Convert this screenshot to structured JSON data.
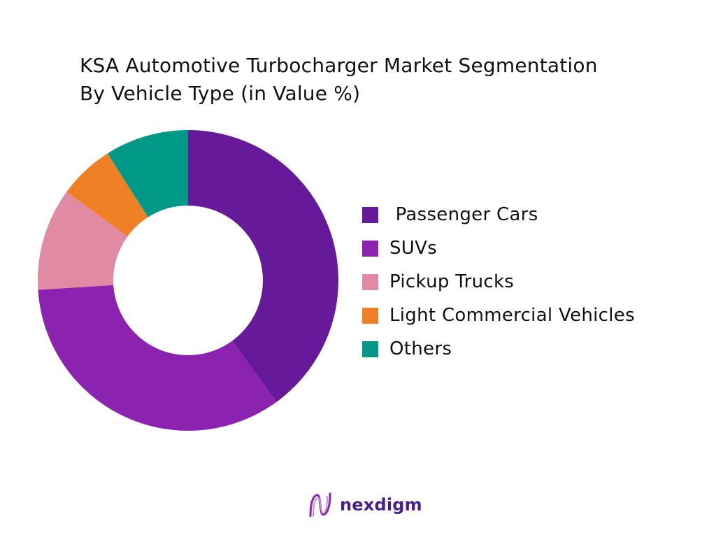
{
  "chart_data": {
    "type": "pie",
    "title": [
      "KSA Automotive Turbocharger Market Segmentation",
      "By Vehicle Type (in Value %)"
    ],
    "categories": [
      " Passenger Cars",
      "SUVs",
      "Pickup Trucks",
      "Light Commercial Vehicles",
      "Others"
    ],
    "values": [
      40,
      34,
      11,
      6,
      9
    ],
    "unit": "%",
    "colors": [
      "#661a99",
      "#8c22b0",
      "#e08aa4",
      "#f08026",
      "#009988"
    ],
    "donut": true,
    "legend": "right"
  },
  "brand": {
    "name": "nexdigm",
    "logo_color": "#8c22b0"
  }
}
